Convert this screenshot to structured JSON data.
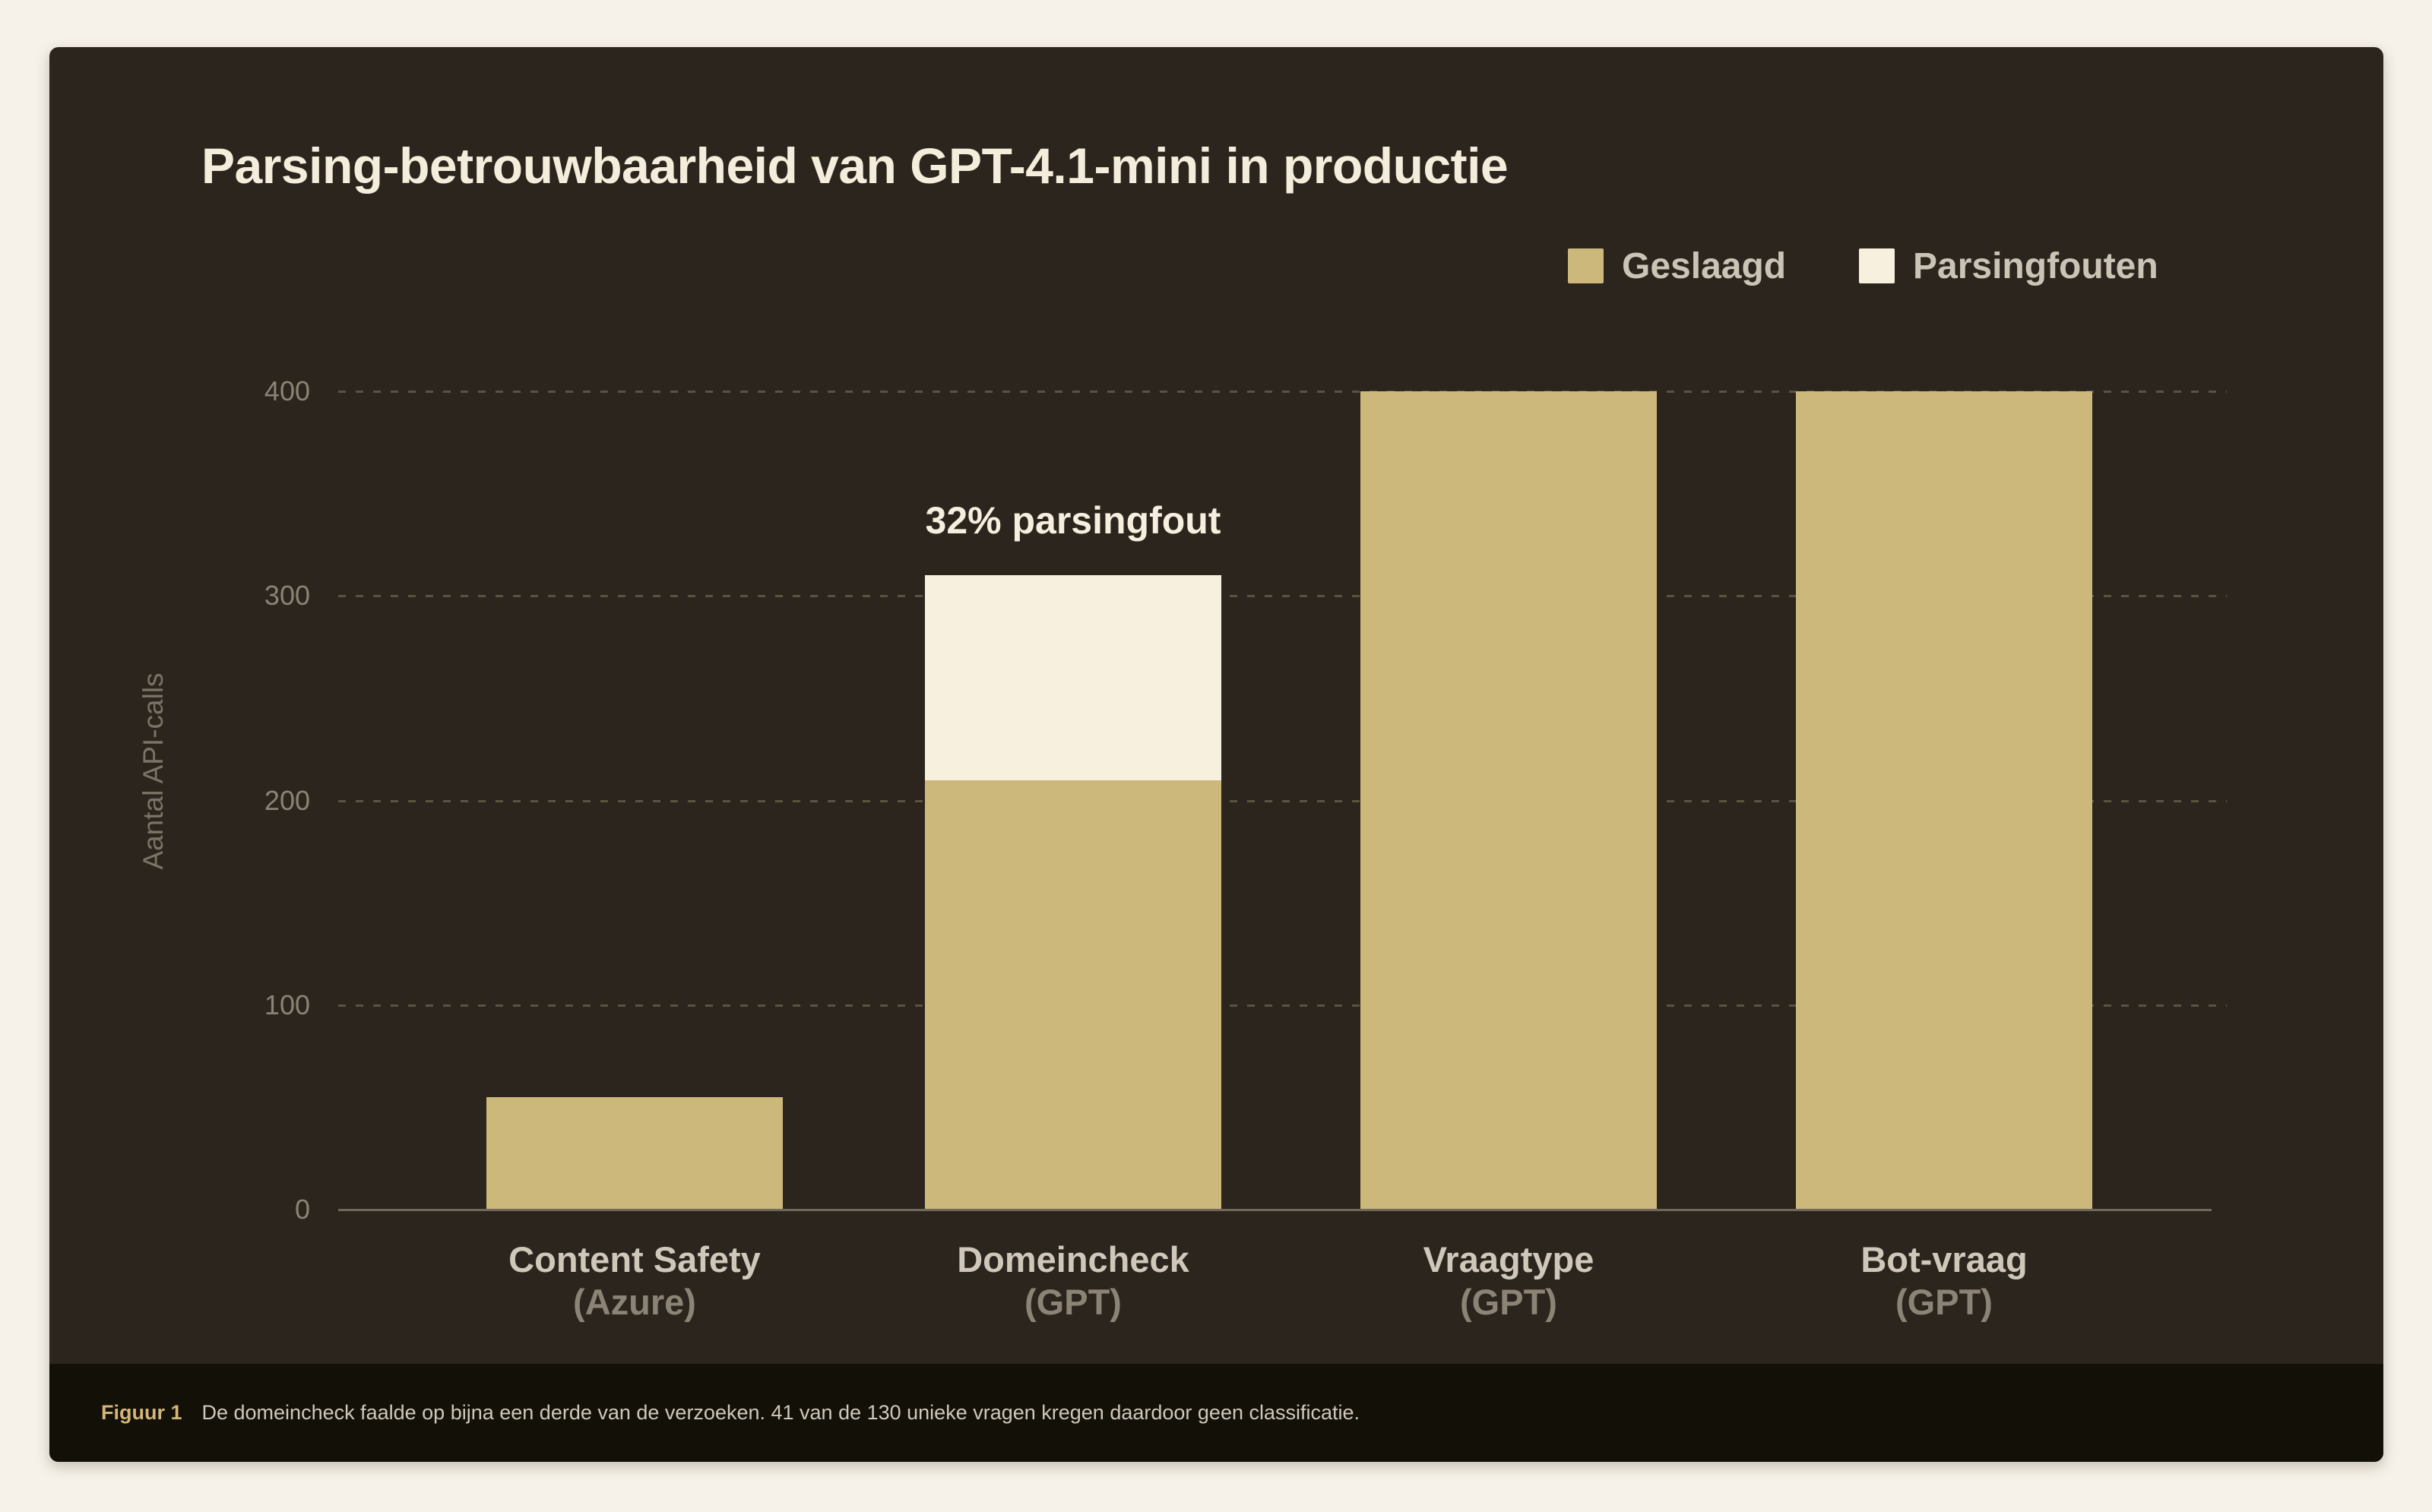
{
  "page_bg": "#F7F2E9",
  "card": {
    "bg": "#2B251D",
    "caption_bar_bg": "#131008"
  },
  "title": "Parsing-betrouwbaarheid van GPT-4.1-mini in productie",
  "legend": {
    "items": [
      {
        "label": "Geslaagd",
        "color": "#CDB87C"
      },
      {
        "label": "Parsingfouten",
        "color": "#F7F0DF"
      }
    ]
  },
  "chart_data": {
    "type": "bar",
    "stacked": true,
    "title": "Parsing-betrouwbaarheid van GPT-4.1-mini in productie",
    "ylabel": "Aantal API-calls",
    "xlabel": "",
    "categories": [
      "Content Safety (Azure)",
      "Domeincheck (GPT)",
      "Vraagtype (GPT)",
      "Bot-vraag (GPT)"
    ],
    "category_lines": [
      [
        "Content Safety",
        "(Azure)"
      ],
      [
        "Domeincheck",
        "(GPT)"
      ],
      [
        "Vraagtype",
        "(GPT)"
      ],
      [
        "Bot-vraag",
        "(GPT)"
      ]
    ],
    "series": [
      {
        "name": "Geslaagd",
        "color": "#CDB87C",
        "values": [
          55,
          210,
          400,
          400
        ]
      },
      {
        "name": "Parsingfouten",
        "color": "#F7F0DF",
        "values": [
          0,
          100,
          0,
          0
        ]
      }
    ],
    "yticks": [
      0,
      100,
      200,
      300,
      400
    ],
    "ylim": [
      0,
      430
    ],
    "grid": "horizontal-dashed",
    "legend_position": "top-right",
    "annotation": {
      "text": "32% parsingfout",
      "category": "Domeincheck (GPT)"
    }
  },
  "caption": {
    "label": "Figuur 1",
    "text": "De domeincheck faalde op bijna een derde van de verzoeken. 41 van de 130 unieke vragen kregen daardoor geen classificatie."
  },
  "style_colors": {
    "grid": "#5A5343",
    "axis": "#6F685B",
    "tick_text": "#8B8375",
    "y_axis_title": "#7B7466",
    "x_label_primary": "#CFC8BA",
    "x_label_secondary": "#8B8375",
    "title_text": "#F4EDDC",
    "legend_text": "#CBC4B6",
    "annotation_text": "#F6EFDF",
    "figure_label": "#D3B576",
    "caption_text": "#CFC8BC"
  }
}
